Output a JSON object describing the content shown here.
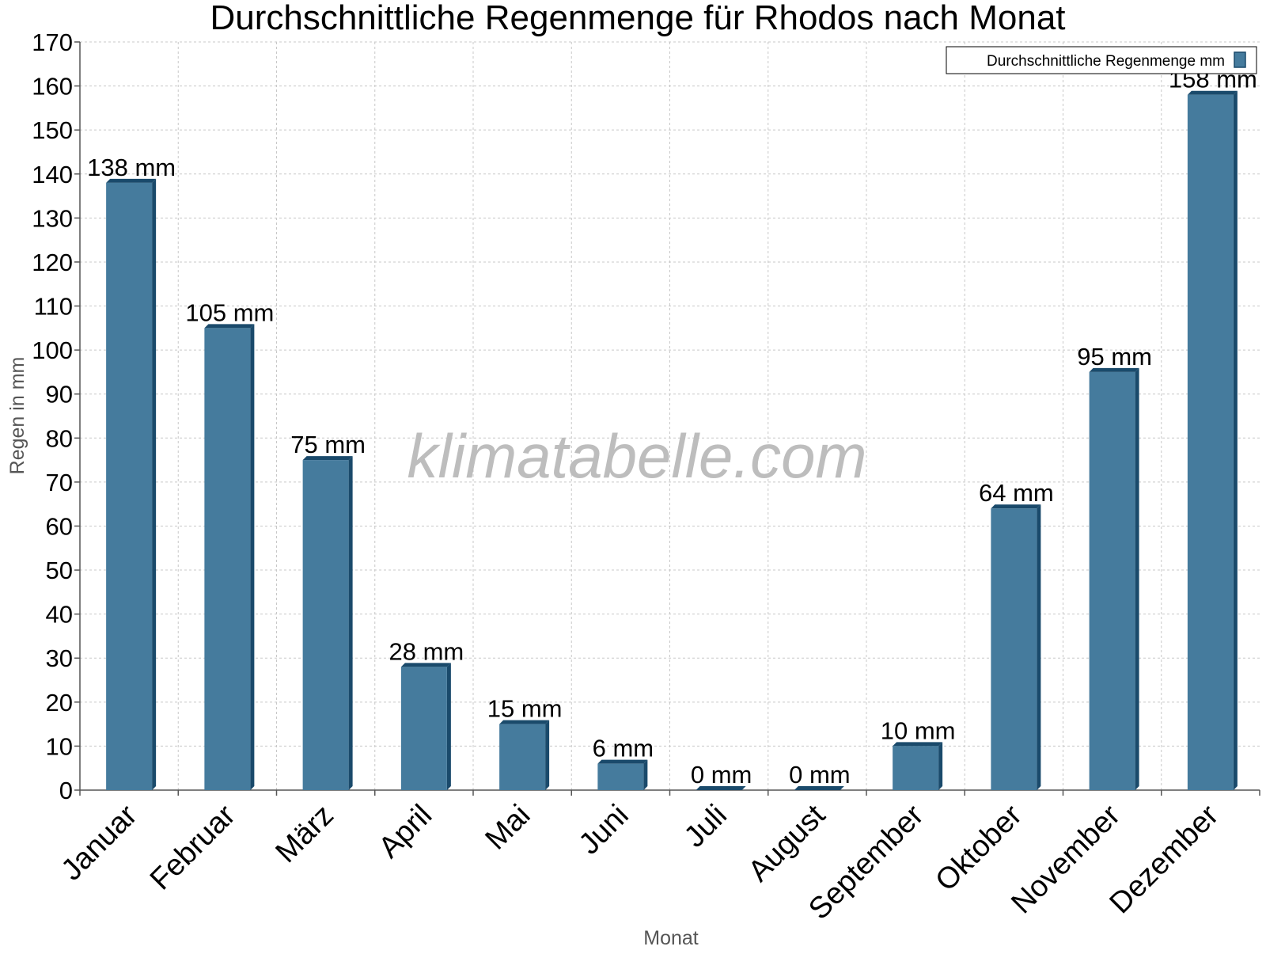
{
  "chart_data": {
    "type": "bar",
    "title": "Durchschnittliche Regenmenge für Rhodos nach Monat",
    "xlabel": "Monat",
    "ylabel": "Regen in mm",
    "ylim": [
      0,
      170
    ],
    "ytick_step": 10,
    "grid": true,
    "legend_position": "top-right",
    "watermark": "klimatabelle.com",
    "categories": [
      "Januar",
      "Februar",
      "März",
      "April",
      "Mai",
      "Juni",
      "Juli",
      "August",
      "September",
      "Oktober",
      "November",
      "Dezember"
    ],
    "series": [
      {
        "name": "Durchschnittliche Regenmenge mm",
        "values": [
          138,
          105,
          75,
          28,
          15,
          6,
          0,
          0,
          10,
          64,
          95,
          158
        ],
        "data_labels": [
          "138 mm",
          "105 mm",
          "75 mm",
          "28 mm",
          "15 mm",
          "6 mm",
          "0 mm",
          "0 mm",
          "10 mm",
          "64 mm",
          "95 mm",
          "158 mm"
        ],
        "color": "#457b9d",
        "edge_color": "#1a4a6b"
      }
    ]
  },
  "colors": {
    "background": "#ffffff",
    "grid": "#c8c8c8",
    "axis": "#555555",
    "text": "#000000",
    "axis_title": "#555555",
    "watermark": "#bdbdbd"
  }
}
